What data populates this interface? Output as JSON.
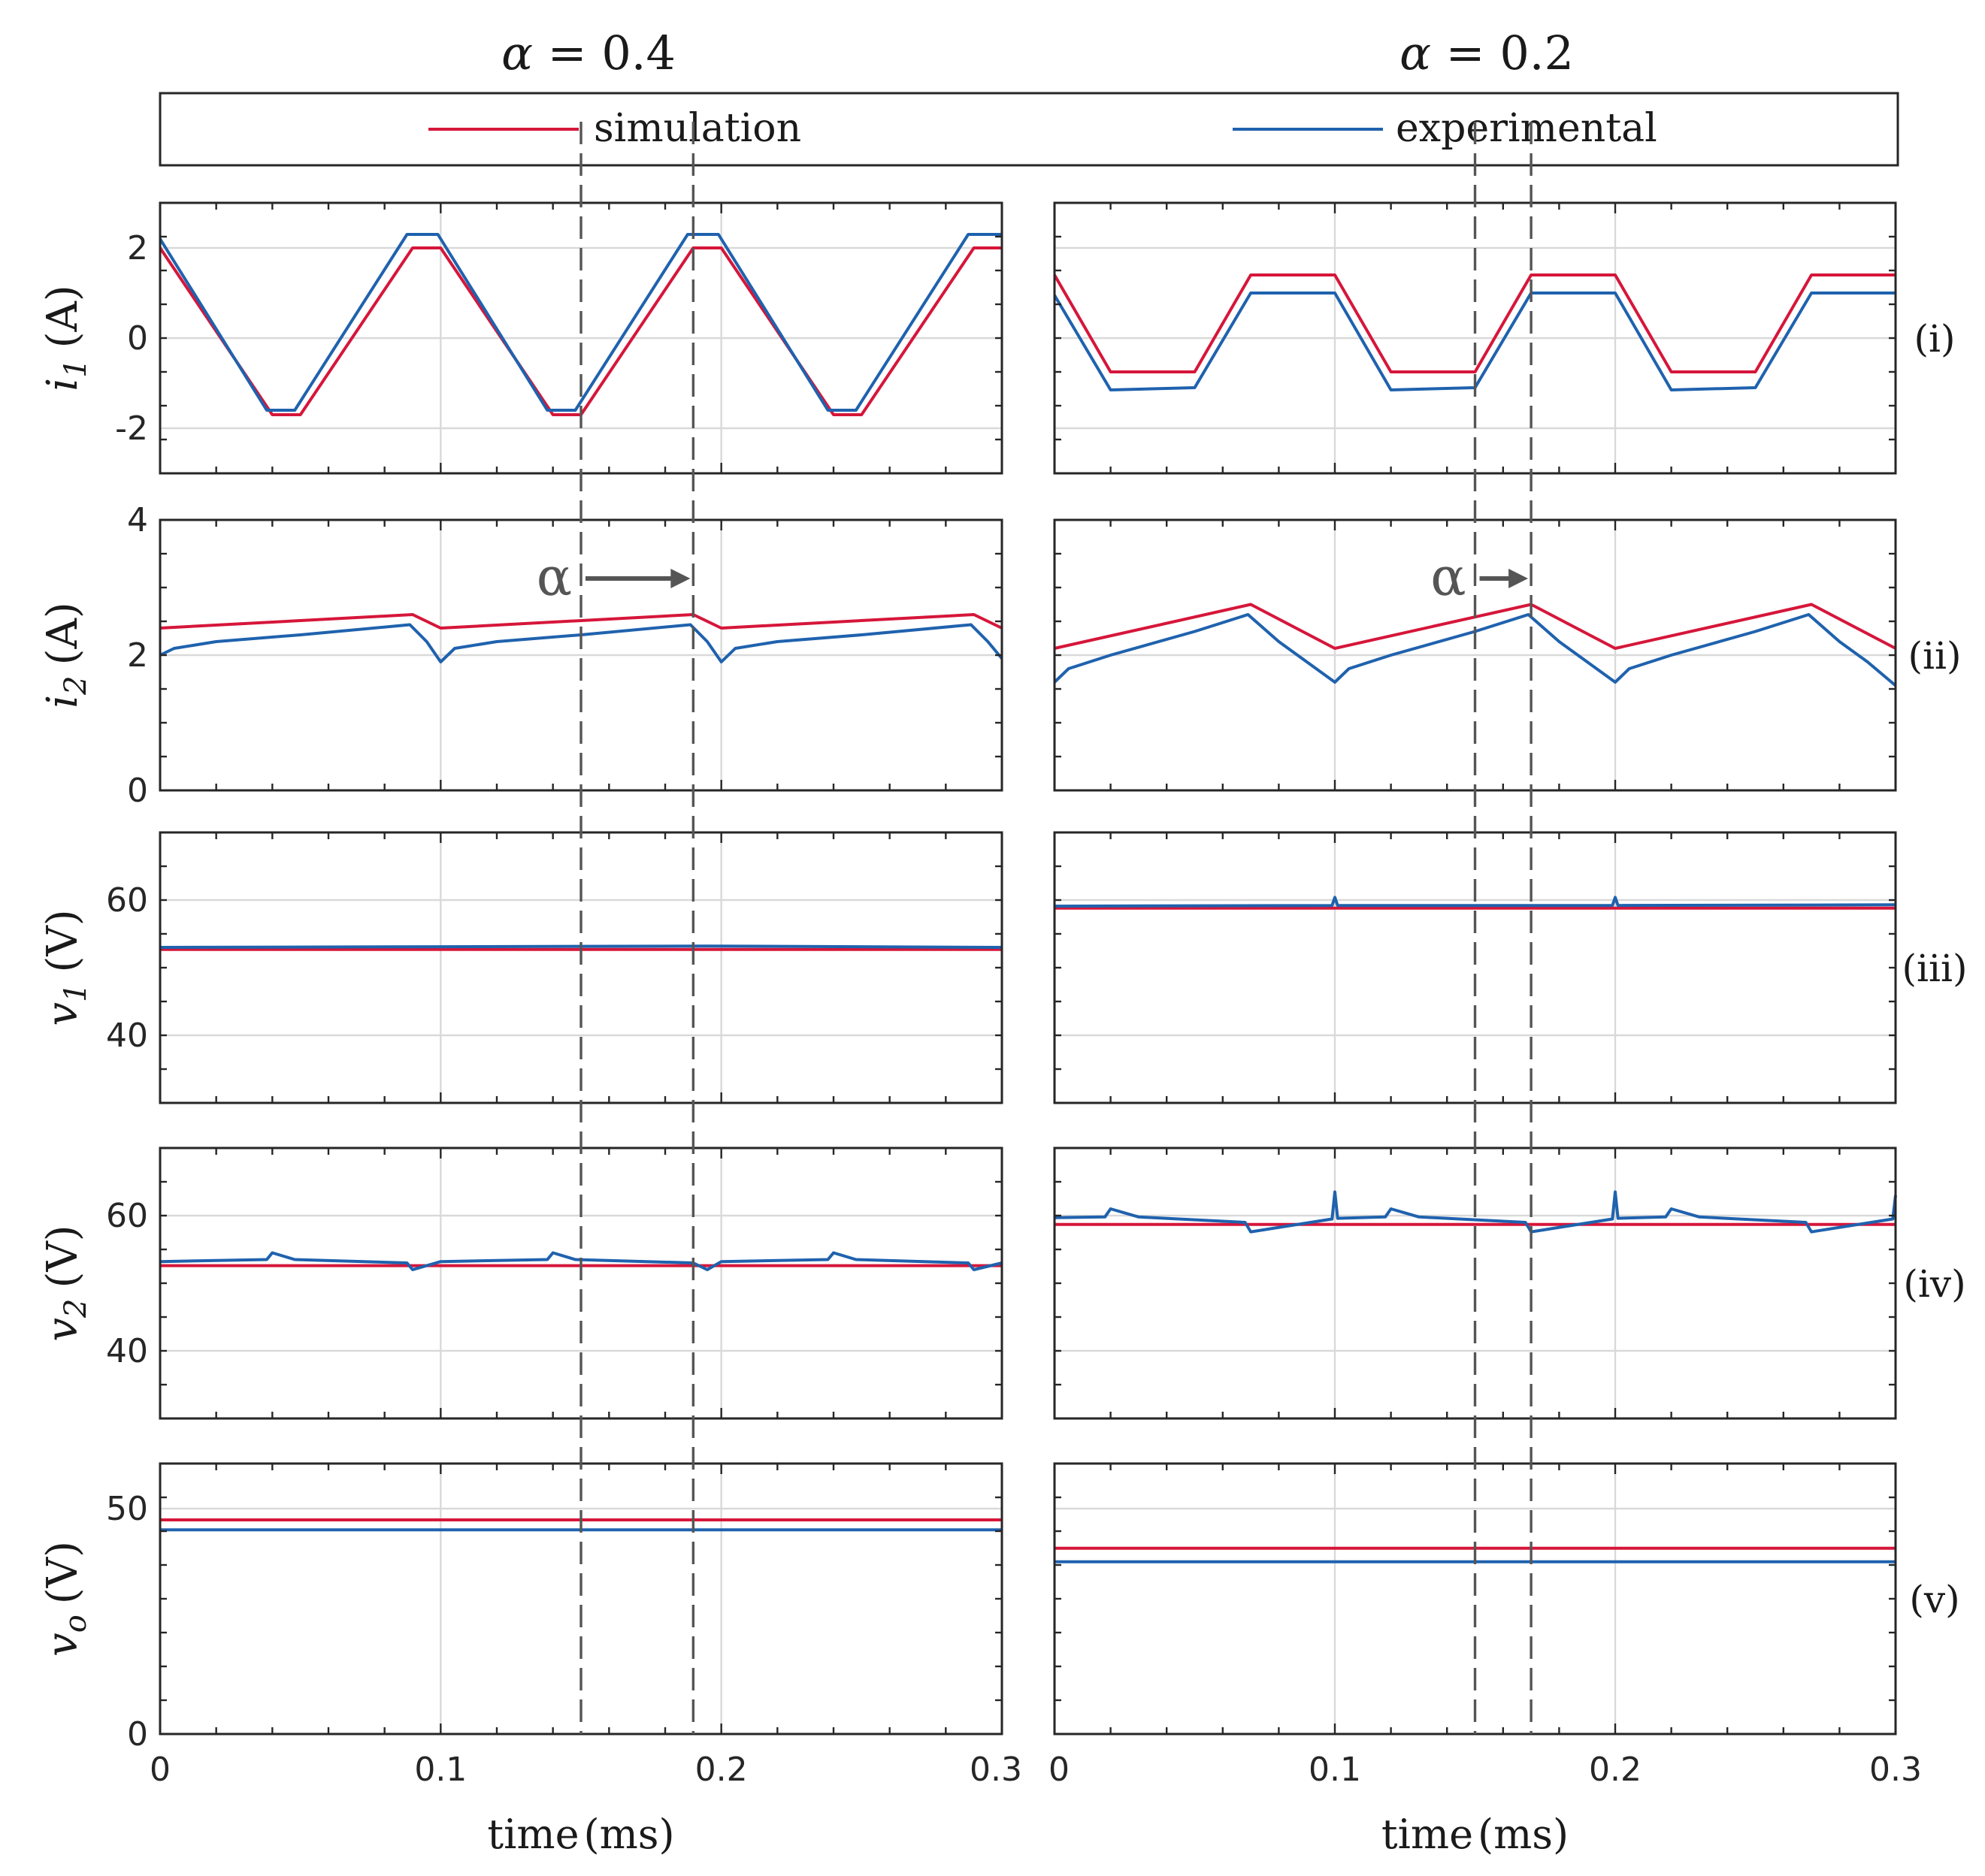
{
  "columns": [
    {
      "title_sym": "α",
      "title_eq": " = 0.4",
      "alpha": 0.4,
      "shift_start_ms": 0.15,
      "shift_end_ms": 0.19
    },
    {
      "title_sym": "α",
      "title_eq": " = 0.2",
      "alpha": 0.2,
      "shift_start_ms": 0.15,
      "shift_end_ms": 0.17
    }
  ],
  "legend": {
    "simulation": "simulation",
    "experimental": "experimental"
  },
  "colors": {
    "simulation": "#d6163a",
    "experimental": "#1f62ae",
    "marker": "#555555"
  },
  "panels": [
    {
      "id": "i",
      "label": "(i)",
      "ylabel_sym": "i",
      "ylabel_sub": "1",
      "ylabel_unit": "(A)",
      "ylim": [
        -3,
        3
      ],
      "yticks": [
        -2,
        0,
        2
      ],
      "ytick_labels": [
        "-2",
        "0",
        "2"
      ]
    },
    {
      "id": "ii",
      "label": "(ii)",
      "ylabel_sym": "i",
      "ylabel_sub": "2",
      "ylabel_unit": "(A)",
      "ylim": [
        0,
        4
      ],
      "yticks": [
        0,
        2,
        4
      ],
      "ytick_labels": [
        "0",
        "2",
        "4"
      ]
    },
    {
      "id": "iii",
      "label": "(iii)",
      "ylabel_sym": "v",
      "ylabel_sub": "1",
      "ylabel_unit": "(V)",
      "ylim": [
        30,
        70
      ],
      "yticks": [
        40,
        60
      ],
      "ytick_labels": [
        "40",
        "60"
      ]
    },
    {
      "id": "iv",
      "label": "(iv)",
      "ylabel_sym": "v",
      "ylabel_sub": "2",
      "ylabel_unit": "(V)",
      "ylim": [
        30,
        70
      ],
      "yticks": [
        40,
        60
      ],
      "ytick_labels": [
        "40",
        "60"
      ]
    },
    {
      "id": "v",
      "label": "(v)",
      "ylabel_sym": "v",
      "ylabel_sub": "o",
      "ylabel_unit": "(V)",
      "ylim": [
        0,
        60
      ],
      "yticks": [
        0,
        50
      ],
      "ytick_labels": [
        "0",
        "50"
      ]
    }
  ],
  "xaxis": {
    "label": "time",
    "unit": "(ms)",
    "xlim": [
      0,
      0.3
    ],
    "ticks": [
      0,
      0.1,
      0.2,
      0.3
    ],
    "tick_labels": [
      "0",
      "0.1",
      "0.2",
      "0.3"
    ]
  },
  "arrow_label": "α",
  "chart_data": [
    {
      "type": "line",
      "column": "α = 0.4",
      "panel": "(i)",
      "ylim": [
        -3,
        3
      ],
      "series": [
        {
          "name": "simulation",
          "x": [
            0,
            0.04,
            0.05,
            0.09,
            0.1,
            0.14,
            0.15,
            0.19,
            0.2,
            0.24,
            0.25,
            0.29,
            0.3
          ],
          "values": [
            2.0,
            -1.7,
            -1.7,
            2.0,
            2.0,
            -1.7,
            -1.7,
            2.0,
            2.0,
            -1.7,
            -1.7,
            2.0,
            2.0
          ]
        },
        {
          "name": "experimental",
          "x": [
            0,
            0.038,
            0.048,
            0.088,
            0.099,
            0.138,
            0.148,
            0.188,
            0.199,
            0.238,
            0.248,
            0.288,
            0.3
          ],
          "values": [
            2.2,
            -1.6,
            -1.6,
            2.3,
            2.3,
            -1.6,
            -1.6,
            2.3,
            2.3,
            -1.6,
            -1.6,
            2.3,
            2.3
          ]
        }
      ]
    },
    {
      "type": "line",
      "column": "α = 0.2",
      "panel": "(i)",
      "ylim": [
        -3,
        3
      ],
      "series": [
        {
          "name": "simulation",
          "x": [
            0,
            0.02,
            0.05,
            0.07,
            0.1,
            0.12,
            0.15,
            0.17,
            0.2,
            0.22,
            0.25,
            0.27,
            0.3
          ],
          "values": [
            1.4,
            -0.75,
            -0.75,
            1.4,
            1.4,
            -0.75,
            -0.75,
            1.4,
            1.4,
            -0.75,
            -0.75,
            1.4,
            1.4
          ]
        },
        {
          "name": "experimental",
          "x": [
            0,
            0.02,
            0.05,
            0.07,
            0.1,
            0.12,
            0.15,
            0.17,
            0.2,
            0.22,
            0.25,
            0.27,
            0.3
          ],
          "values": [
            0.95,
            -1.15,
            -1.1,
            1.0,
            1.0,
            -1.15,
            -1.1,
            1.0,
            1.0,
            -1.15,
            -1.1,
            1.0,
            1.0
          ]
        }
      ]
    },
    {
      "type": "line",
      "column": "α = 0.4",
      "panel": "(ii)",
      "ylim": [
        0,
        4
      ],
      "series": [
        {
          "name": "simulation",
          "x": [
            0,
            0.09,
            0.1,
            0.19,
            0.2,
            0.29,
            0.3
          ],
          "values": [
            2.4,
            2.6,
            2.4,
            2.6,
            2.4,
            2.6,
            2.4
          ]
        },
        {
          "name": "experimental",
          "x": [
            0,
            0.005,
            0.02,
            0.05,
            0.089,
            0.095,
            0.1,
            0.105,
            0.12,
            0.15,
            0.189,
            0.195,
            0.2,
            0.205,
            0.22,
            0.25,
            0.289,
            0.295,
            0.3
          ],
          "values": [
            2.0,
            2.1,
            2.2,
            2.3,
            2.45,
            2.2,
            1.9,
            2.1,
            2.2,
            2.3,
            2.45,
            2.2,
            1.9,
            2.1,
            2.2,
            2.3,
            2.45,
            2.2,
            1.95
          ]
        }
      ]
    },
    {
      "type": "line",
      "column": "α = 0.2",
      "panel": "(ii)",
      "ylim": [
        0,
        4
      ],
      "series": [
        {
          "name": "simulation",
          "x": [
            0,
            0.07,
            0.1,
            0.17,
            0.2,
            0.27,
            0.3
          ],
          "values": [
            2.1,
            2.75,
            2.1,
            2.75,
            2.1,
            2.75,
            2.1
          ]
        },
        {
          "name": "experimental",
          "x": [
            0,
            0.005,
            0.02,
            0.05,
            0.069,
            0.08,
            0.09,
            0.1,
            0.105,
            0.12,
            0.15,
            0.169,
            0.18,
            0.19,
            0.2,
            0.205,
            0.22,
            0.25,
            0.269,
            0.28,
            0.29,
            0.3
          ],
          "values": [
            1.6,
            1.8,
            2.0,
            2.35,
            2.6,
            2.2,
            1.9,
            1.6,
            1.8,
            2.0,
            2.35,
            2.6,
            2.2,
            1.9,
            1.6,
            1.8,
            2.0,
            2.35,
            2.6,
            2.2,
            1.9,
            1.55
          ]
        }
      ]
    },
    {
      "type": "line",
      "column": "α = 0.4",
      "panel": "(iii)",
      "ylim": [
        30,
        70
      ],
      "series": [
        {
          "name": "simulation",
          "x": [
            0,
            0.3
          ],
          "values": [
            52.7,
            52.7
          ]
        },
        {
          "name": "experimental",
          "x": [
            0,
            0.1,
            0.195,
            0.3
          ],
          "values": [
            53.0,
            53.1,
            53.2,
            53.0
          ]
        }
      ]
    },
    {
      "type": "line",
      "column": "α = 0.2",
      "panel": "(iii)",
      "ylim": [
        30,
        70
      ],
      "series": [
        {
          "name": "simulation",
          "x": [
            0,
            0.3
          ],
          "values": [
            58.8,
            58.8
          ]
        },
        {
          "name": "experimental",
          "x": [
            0,
            0.099,
            0.1,
            0.101,
            0.199,
            0.2,
            0.201,
            0.3
          ],
          "values": [
            59.1,
            59.2,
            60.4,
            59.2,
            59.2,
            60.4,
            59.2,
            59.3
          ]
        }
      ]
    },
    {
      "type": "line",
      "column": "α = 0.4",
      "panel": "(iv)",
      "ylim": [
        30,
        70
      ],
      "series": [
        {
          "name": "simulation",
          "x": [
            0,
            0.3
          ],
          "values": [
            52.6,
            52.6
          ]
        },
        {
          "name": "experimental",
          "x": [
            0,
            0.038,
            0.04,
            0.048,
            0.088,
            0.09,
            0.1,
            0.138,
            0.14,
            0.148,
            0.19,
            0.195,
            0.2,
            0.238,
            0.24,
            0.248,
            0.288,
            0.29,
            0.3
          ],
          "values": [
            53.2,
            53.5,
            54.5,
            53.5,
            53.0,
            52.0,
            53.2,
            53.5,
            54.5,
            53.5,
            53.0,
            52.0,
            53.2,
            53.5,
            54.5,
            53.5,
            53.0,
            52.0,
            53.0
          ]
        }
      ]
    },
    {
      "type": "line",
      "column": "α = 0.2",
      "panel": "(iv)",
      "ylim": [
        30,
        70
      ],
      "series": [
        {
          "name": "simulation",
          "x": [
            0,
            0.3
          ],
          "values": [
            58.7,
            58.7
          ]
        },
        {
          "name": "experimental",
          "x": [
            0,
            0.018,
            0.02,
            0.03,
            0.068,
            0.07,
            0.099,
            0.1,
            0.101,
            0.118,
            0.12,
            0.13,
            0.168,
            0.17,
            0.199,
            0.2,
            0.201,
            0.218,
            0.22,
            0.23,
            0.268,
            0.27,
            0.299,
            0.3
          ],
          "values": [
            59.7,
            59.8,
            61.0,
            59.8,
            59.0,
            57.6,
            59.5,
            63.5,
            59.6,
            59.8,
            61.0,
            59.8,
            59.0,
            57.6,
            59.5,
            63.5,
            59.6,
            59.8,
            61.0,
            59.8,
            59.0,
            57.6,
            59.5,
            63.0
          ]
        }
      ]
    },
    {
      "type": "line",
      "column": "α = 0.4",
      "panel": "(v)",
      "ylim": [
        0,
        60
      ],
      "series": [
        {
          "name": "simulation",
          "x": [
            0,
            0.3
          ],
          "values": [
            47.5,
            47.5
          ]
        },
        {
          "name": "experimental",
          "x": [
            0,
            0.3
          ],
          "values": [
            45.3,
            45.3
          ]
        }
      ]
    },
    {
      "type": "line",
      "column": "α = 0.2",
      "panel": "(v)",
      "ylim": [
        0,
        60
      ],
      "series": [
        {
          "name": "simulation",
          "x": [
            0,
            0.3
          ],
          "values": [
            41.2,
            41.2
          ]
        },
        {
          "name": "experimental",
          "x": [
            0,
            0.3
          ],
          "values": [
            38.2,
            38.2
          ]
        }
      ]
    }
  ]
}
